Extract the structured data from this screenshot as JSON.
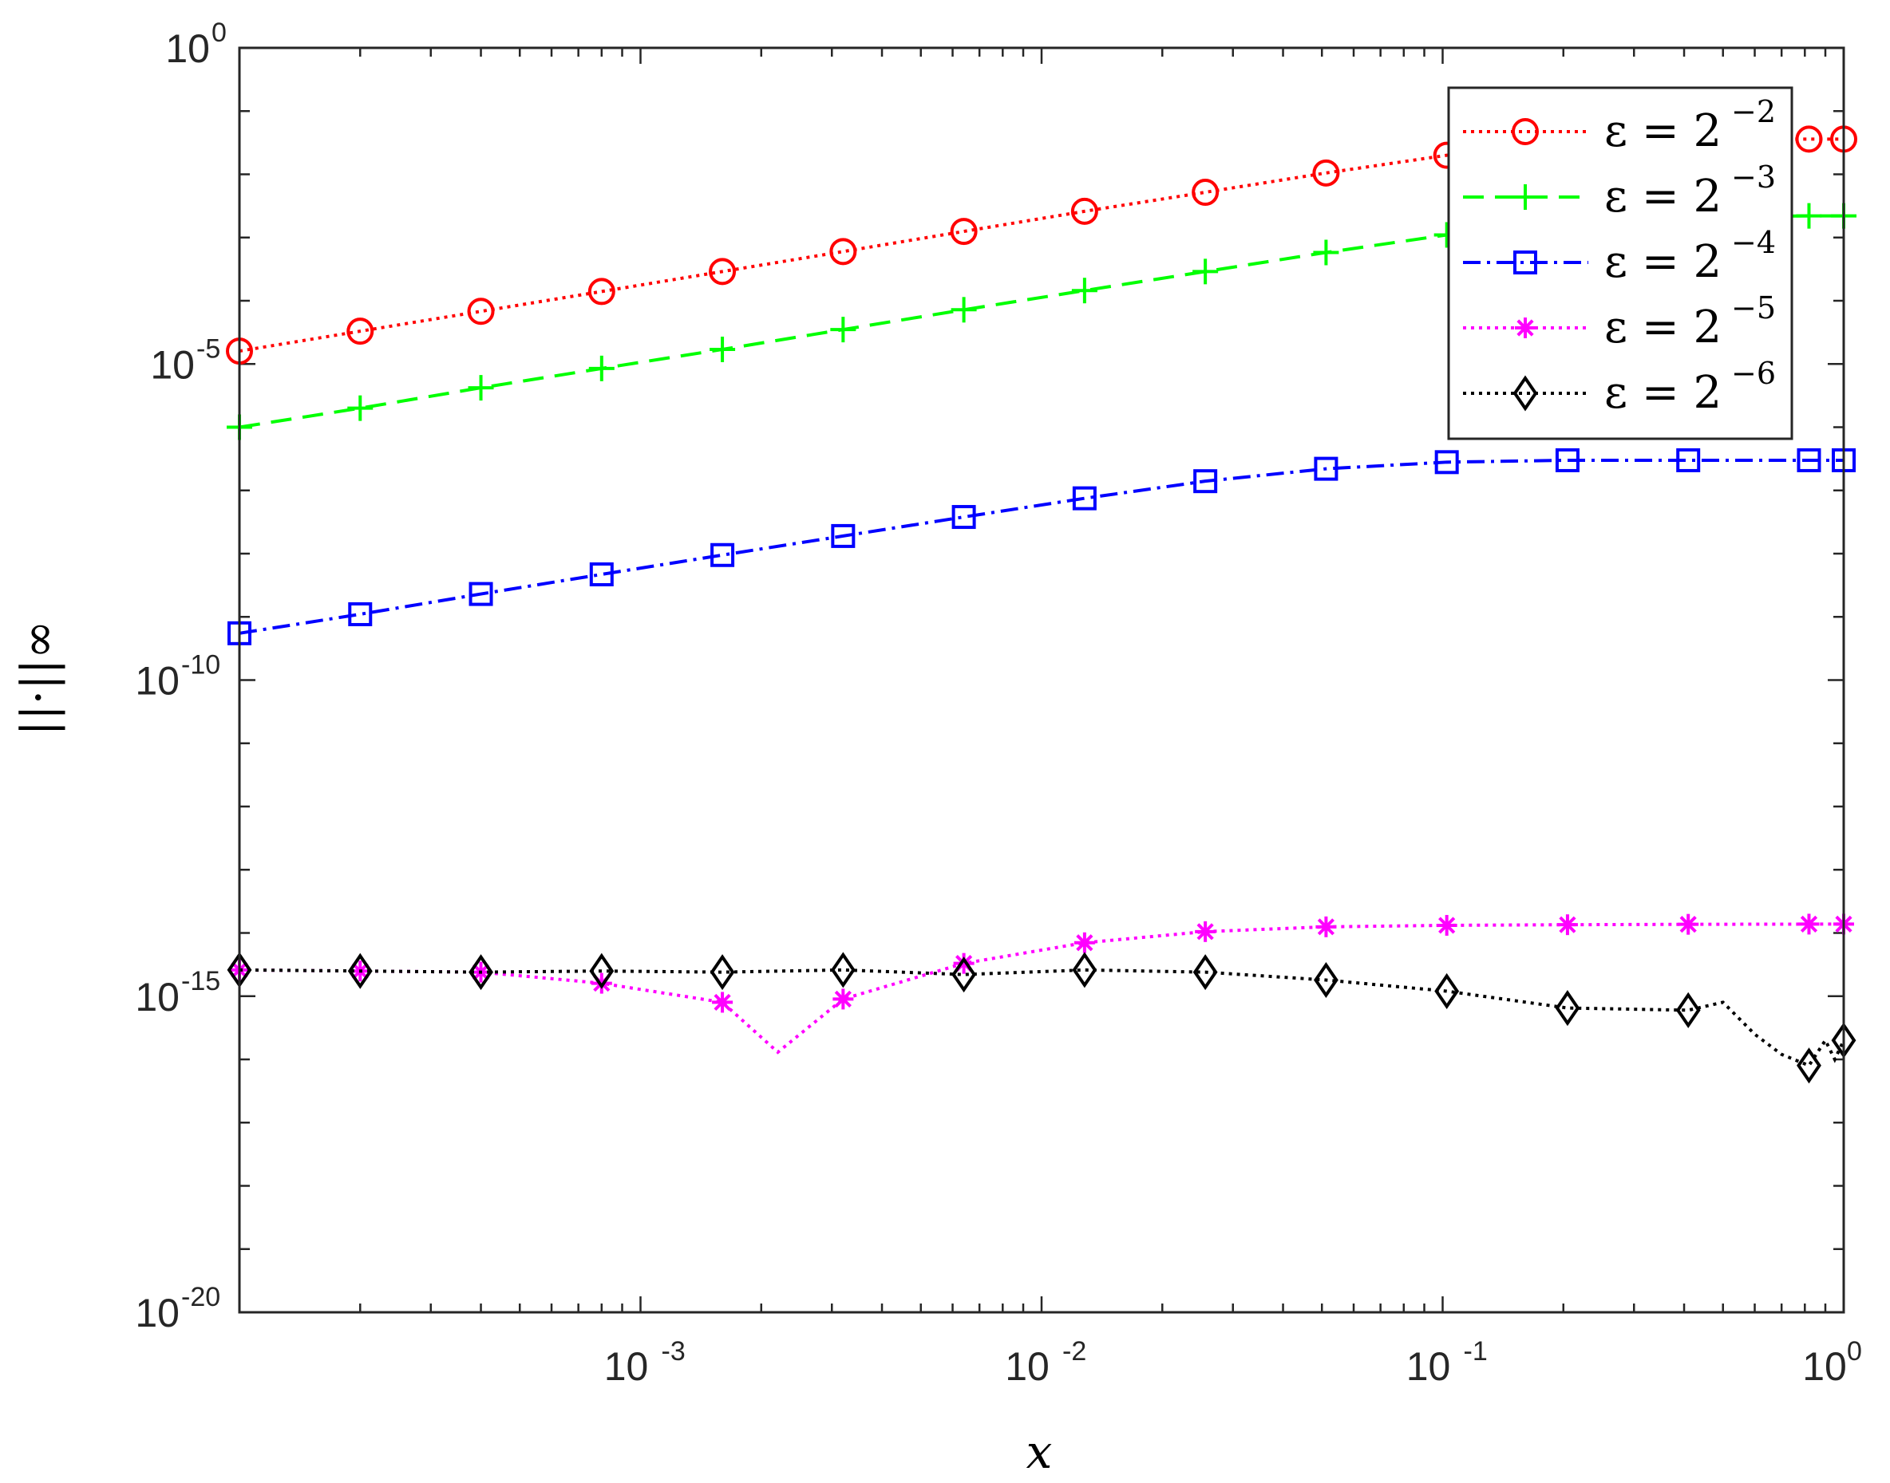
{
  "chart_data": {
    "type": "line",
    "xscale": "log",
    "yscale": "log",
    "xlabel": "x",
    "ylabel": "||·||∞",
    "xlim": [
      0.0001,
      1
    ],
    "ylim": [
      1e-20,
      1
    ],
    "xticks": [
      {
        "value": 0.001,
        "base": "10",
        "exp": "-3"
      },
      {
        "value": 0.01,
        "base": "10",
        "exp": "-2"
      },
      {
        "value": 0.1,
        "base": "10",
        "exp": "-1"
      },
      {
        "value": 1,
        "base": "10",
        "exp": "0"
      }
    ],
    "yticks": [
      {
        "value": 1,
        "base": "10",
        "exp": "0"
      },
      {
        "value": 1e-05,
        "base": "10",
        "exp": "-5"
      },
      {
        "value": 1e-10,
        "base": "10",
        "exp": "-10"
      },
      {
        "value": 1e-15,
        "base": "10",
        "exp": "-15"
      },
      {
        "value": 1e-20,
        "base": "10",
        "exp": "-20"
      }
    ],
    "grid": false,
    "legend_position": "top-right",
    "series": [
      {
        "name": "ε = 2",
        "name_exp": "−2",
        "color": "#ff0000",
        "dash": "dotted",
        "marker": "circle",
        "points": [
          [
            0.0001,
            1.6e-05
          ],
          [
            0.0002,
            3.3e-05
          ],
          [
            0.0004,
            6.8e-05
          ],
          [
            0.0008,
            0.00014
          ],
          [
            0.0016,
            0.00029
          ],
          [
            0.0032,
            0.0006
          ],
          [
            0.0064,
            0.00125
          ],
          [
            0.0128,
            0.0026
          ],
          [
            0.0256,
            0.0052
          ],
          [
            0.0512,
            0.0105
          ],
          [
            0.1024,
            0.02
          ],
          [
            0.2048,
            0.032
          ],
          [
            0.4096,
            0.036
          ],
          [
            0.8192,
            0.036
          ],
          [
            1.0,
            0.036
          ]
        ]
      },
      {
        "name": "ε = 2",
        "name_exp": "−3",
        "color": "#00ff00",
        "dash": "dashed",
        "marker": "plus",
        "points": [
          [
            0.0001,
            1e-06
          ],
          [
            0.0002,
            2e-06
          ],
          [
            0.0004,
            4.2e-06
          ],
          [
            0.0008,
            8.5e-06
          ],
          [
            0.0016,
            1.7e-05
          ],
          [
            0.0032,
            3.5e-05
          ],
          [
            0.0064,
            7.2e-05
          ],
          [
            0.0128,
            0.000145
          ],
          [
            0.0256,
            0.00029
          ],
          [
            0.0512,
            0.00058
          ],
          [
            0.1024,
            0.0011
          ],
          [
            0.2048,
            0.0017
          ],
          [
            0.4096,
            0.0021
          ],
          [
            0.8192,
            0.0022
          ],
          [
            1.0,
            0.0022
          ]
        ]
      },
      {
        "name": "ε = 2",
        "name_exp": "−4",
        "color": "#0000ff",
        "dash": "dashdot",
        "marker": "square",
        "points": [
          [
            0.0001,
            5.5e-10
          ],
          [
            0.0002,
            1.1e-09
          ],
          [
            0.0004,
            2.3e-09
          ],
          [
            0.0008,
            4.7e-09
          ],
          [
            0.0016,
            9.5e-09
          ],
          [
            0.0032,
            1.9e-08
          ],
          [
            0.0064,
            3.8e-08
          ],
          [
            0.0128,
            7.5e-08
          ],
          [
            0.0256,
            1.4e-07
          ],
          [
            0.0512,
            2.2e-07
          ],
          [
            0.1024,
            2.8e-07
          ],
          [
            0.2048,
            3e-07
          ],
          [
            0.4096,
            3e-07
          ],
          [
            0.8192,
            3e-07
          ],
          [
            1.0,
            3e-07
          ]
        ]
      },
      {
        "name": "ε = 2",
        "name_exp": "−5",
        "color": "#ff00ff",
        "dash": "dotted",
        "marker": "asterisk",
        "points": [
          [
            0.0001,
            2.6e-15
          ],
          [
            0.0002,
            2.5e-15
          ],
          [
            0.0004,
            2.4e-15
          ],
          [
            0.0008,
            1.6e-15
          ],
          [
            0.0016,
            8e-16
          ],
          [
            0.0022,
            1.3e-16
          ],
          [
            0.0032,
            9e-16
          ],
          [
            0.0064,
            3.3e-15
          ],
          [
            0.0128,
            7e-15
          ],
          [
            0.0256,
            1.05e-14
          ],
          [
            0.0512,
            1.25e-14
          ],
          [
            0.1024,
            1.32e-14
          ],
          [
            0.2048,
            1.35e-14
          ],
          [
            0.4096,
            1.37e-14
          ],
          [
            0.8192,
            1.38e-14
          ],
          [
            1.0,
            1.38e-14
          ]
        ]
      },
      {
        "name": "ε = 2",
        "name_exp": "−6",
        "color": "#000000",
        "dash": "dotted",
        "marker": "diamond",
        "points": [
          [
            0.0001,
            2.6e-15
          ],
          [
            0.0002,
            2.5e-15
          ],
          [
            0.0004,
            2.4e-15
          ],
          [
            0.0008,
            2.5e-15
          ],
          [
            0.0016,
            2.4e-15
          ],
          [
            0.0032,
            2.6e-15
          ],
          [
            0.0064,
            2.2e-15
          ],
          [
            0.0128,
            2.6e-15
          ],
          [
            0.0256,
            2.4e-15
          ],
          [
            0.0512,
            1.8e-15
          ],
          [
            0.1024,
            1.2e-15
          ],
          [
            0.2048,
            6.5e-16
          ],
          [
            0.4096,
            6e-16
          ],
          [
            0.5,
            8e-16
          ],
          [
            0.6,
            2.5e-16
          ],
          [
            0.7,
            1.2e-16
          ],
          [
            0.8192,
            8e-17
          ],
          [
            0.9,
            2e-16
          ],
          [
            0.95,
            1e-16
          ],
          [
            1.0,
            2e-16
          ]
        ]
      }
    ]
  }
}
